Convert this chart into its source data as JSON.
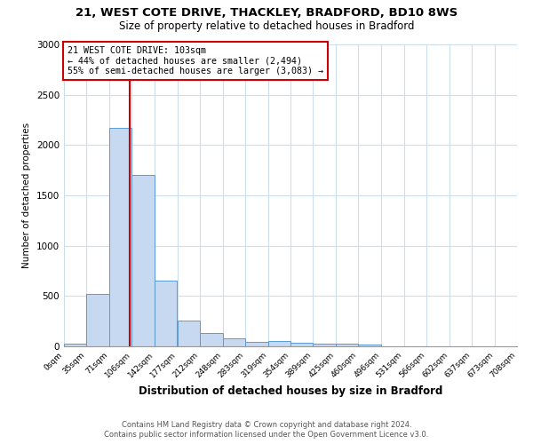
{
  "title1": "21, WEST COTE DRIVE, THACKLEY, BRADFORD, BD10 8WS",
  "title2": "Size of property relative to detached houses in Bradford",
  "xlabel": "Distribution of detached houses by size in Bradford",
  "ylabel": "Number of detached properties",
  "footnote1": "Contains HM Land Registry data © Crown copyright and database right 2024.",
  "footnote2": "Contains public sector information licensed under the Open Government Licence v3.0.",
  "annotation_line1": "21 WEST COTE DRIVE: 103sqm",
  "annotation_line2": "← 44% of detached houses are smaller (2,494)",
  "annotation_line3": "55% of semi-detached houses are larger (3,083) →",
  "bar_edges": [
    0,
    35,
    71,
    106,
    142,
    177,
    212,
    248,
    283,
    319,
    354,
    389,
    425,
    460,
    496,
    531,
    566,
    602,
    637,
    673,
    708
  ],
  "bar_heights": [
    30,
    520,
    2175,
    1700,
    650,
    255,
    130,
    80,
    40,
    50,
    35,
    30,
    25,
    20,
    0,
    0,
    0,
    0,
    0,
    0
  ],
  "bar_color": "#c6d9f0",
  "bar_edge_color": "#5b9bd5",
  "vline_x": 103,
  "vline_color": "#cc0000",
  "annotation_box_edge": "#cc0000",
  "ylim": [
    0,
    3000
  ],
  "yticks": [
    0,
    500,
    1000,
    1500,
    2000,
    2500,
    3000
  ],
  "xtick_labels": [
    "0sqm",
    "35sqm",
    "71sqm",
    "106sqm",
    "142sqm",
    "177sqm",
    "212sqm",
    "248sqm",
    "283sqm",
    "319sqm",
    "354sqm",
    "389sqm",
    "425sqm",
    "460sqm",
    "496sqm",
    "531sqm",
    "566sqm",
    "602sqm",
    "637sqm",
    "673sqm",
    "708sqm"
  ],
  "grid_color": "#ccddee",
  "bg_color": "#ffffff",
  "title1_fontsize": 9.5,
  "title2_fontsize": 8.5
}
